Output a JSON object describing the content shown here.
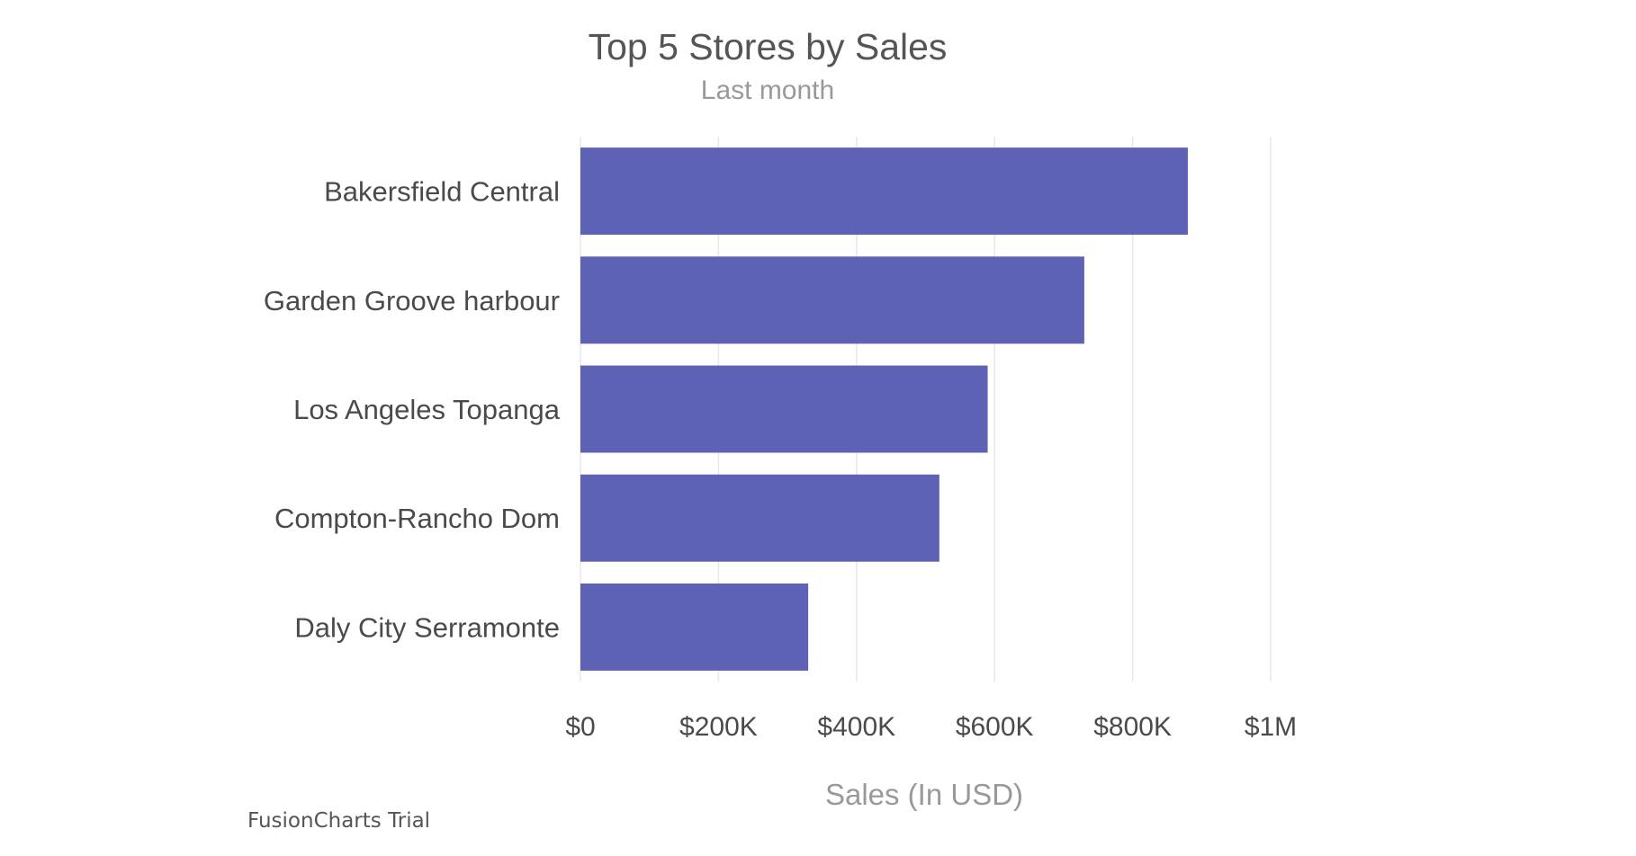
{
  "chart_data": {
    "type": "bar",
    "orientation": "horizontal",
    "title": "Top 5 Stores by Sales",
    "subtitle": "Last month",
    "categories": [
      "Bakersfield Central",
      "Garden Groove harbour",
      "Los Angeles Topanga",
      "Compton-Rancho Dom",
      "Daly City Serramonte"
    ],
    "values": [
      880000,
      730000,
      590000,
      520000,
      330000
    ],
    "xlabel": "Sales (In USD)",
    "ylabel": "",
    "xlim": [
      0,
      1000000
    ],
    "ticks": [
      {
        "value": 0,
        "label": "$0"
      },
      {
        "value": 200000,
        "label": "$200K"
      },
      {
        "value": 400000,
        "label": "$400K"
      },
      {
        "value": 600000,
        "label": "$600K"
      },
      {
        "value": 800000,
        "label": "$800K"
      },
      {
        "value": 1000000,
        "label": "$1M"
      }
    ],
    "grid": true,
    "bar_color": "#5d62b5"
  },
  "credit": "FusionCharts Trial"
}
